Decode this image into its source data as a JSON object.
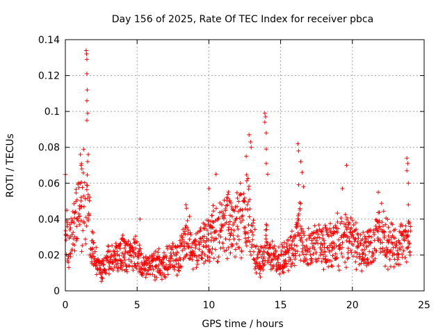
{
  "chart_data": {
    "type": "scatter",
    "title": "Day 156 of 2025, Rate Of TEC Index for receiver pbca",
    "xlabel": "GPS time / hours",
    "ylabel": "ROTI / TECUs",
    "xlim": [
      0,
      25
    ],
    "ylim": [
      0,
      0.14
    ],
    "xticks": [
      "0",
      "5",
      "10",
      "15",
      "20",
      "25"
    ],
    "yticks": [
      "0",
      "0.02",
      "0.04",
      "0.06",
      "0.08",
      "0.1",
      "0.12",
      "0.14"
    ],
    "grid": true,
    "marker": "+",
    "series_color": "#ff0000",
    "envelope": [
      [
        0.0,
        0.045
      ],
      [
        0.2,
        0.022
      ],
      [
        0.5,
        0.033
      ],
      [
        0.8,
        0.045
      ],
      [
        1.0,
        0.05
      ],
      [
        1.2,
        0.055
      ],
      [
        1.4,
        0.05
      ],
      [
        1.6,
        0.048
      ],
      [
        1.8,
        0.025
      ],
      [
        2.0,
        0.02
      ],
      [
        2.3,
        0.012
      ],
      [
        2.6,
        0.012
      ],
      [
        3.0,
        0.017
      ],
      [
        3.5,
        0.019
      ],
      [
        4.0,
        0.021
      ],
      [
        4.5,
        0.02
      ],
      [
        5.0,
        0.022
      ],
      [
        5.3,
        0.015
      ],
      [
        5.8,
        0.014
      ],
      [
        6.5,
        0.015
      ],
      [
        7.0,
        0.016
      ],
      [
        7.5,
        0.018
      ],
      [
        8.0,
        0.02
      ],
      [
        8.5,
        0.03
      ],
      [
        9.0,
        0.022
      ],
      [
        9.5,
        0.026
      ],
      [
        10.0,
        0.03
      ],
      [
        10.5,
        0.034
      ],
      [
        11.0,
        0.036
      ],
      [
        11.5,
        0.038
      ],
      [
        12.0,
        0.036
      ],
      [
        12.5,
        0.04
      ],
      [
        12.8,
        0.05
      ],
      [
        13.0,
        0.03
      ],
      [
        13.3,
        0.018
      ],
      [
        13.8,
        0.016
      ],
      [
        14.0,
        0.03
      ],
      [
        14.3,
        0.02
      ],
      [
        14.8,
        0.018
      ],
      [
        15.0,
        0.016
      ],
      [
        15.5,
        0.02
      ],
      [
        16.0,
        0.024
      ],
      [
        16.3,
        0.04
      ],
      [
        16.6,
        0.022
      ],
      [
        17.0,
        0.024
      ],
      [
        17.5,
        0.026
      ],
      [
        18.0,
        0.025
      ],
      [
        18.5,
        0.027
      ],
      [
        19.0,
        0.028
      ],
      [
        19.5,
        0.03
      ],
      [
        20.0,
        0.03
      ],
      [
        20.5,
        0.024
      ],
      [
        20.8,
        0.022
      ],
      [
        21.5,
        0.025
      ],
      [
        22.0,
        0.035
      ],
      [
        22.5,
        0.027
      ],
      [
        23.0,
        0.024
      ],
      [
        23.5,
        0.025
      ],
      [
        24.0,
        0.027
      ]
    ],
    "spikes": [
      [
        1.05,
        0.076
      ],
      [
        1.1,
        0.07
      ],
      [
        1.15,
        0.068
      ],
      [
        1.45,
        0.134
      ],
      [
        1.48,
        0.132
      ],
      [
        1.5,
        0.129
      ],
      [
        1.5,
        0.121
      ],
      [
        1.52,
        0.112
      ],
      [
        1.5,
        0.106
      ],
      [
        1.55,
        0.099
      ],
      [
        1.5,
        0.095
      ],
      [
        1.6,
        0.076
      ],
      [
        1.55,
        0.072
      ],
      [
        4.0,
        0.031
      ],
      [
        5.2,
        0.04
      ],
      [
        8.4,
        0.048
      ],
      [
        10.5,
        0.065
      ],
      [
        10.0,
        0.057
      ],
      [
        12.2,
        0.06
      ],
      [
        12.6,
        0.075
      ],
      [
        12.8,
        0.087
      ],
      [
        12.9,
        0.083
      ],
      [
        12.95,
        0.08
      ],
      [
        13.9,
        0.099
      ],
      [
        13.95,
        0.097
      ],
      [
        13.9,
        0.094
      ],
      [
        14.0,
        0.088
      ],
      [
        14.0,
        0.079
      ],
      [
        14.0,
        0.071
      ],
      [
        14.1,
        0.065
      ],
      [
        16.2,
        0.082
      ],
      [
        16.25,
        0.078
      ],
      [
        16.4,
        0.072
      ],
      [
        16.5,
        0.066
      ],
      [
        16.6,
        0.058
      ],
      [
        19.3,
        0.057
      ],
      [
        19.6,
        0.07
      ],
      [
        21.8,
        0.055
      ],
      [
        23.8,
        0.074
      ],
      [
        23.85,
        0.071
      ],
      [
        23.8,
        0.067
      ],
      [
        23.9,
        0.06
      ],
      [
        23.9,
        0.048
      ]
    ]
  }
}
